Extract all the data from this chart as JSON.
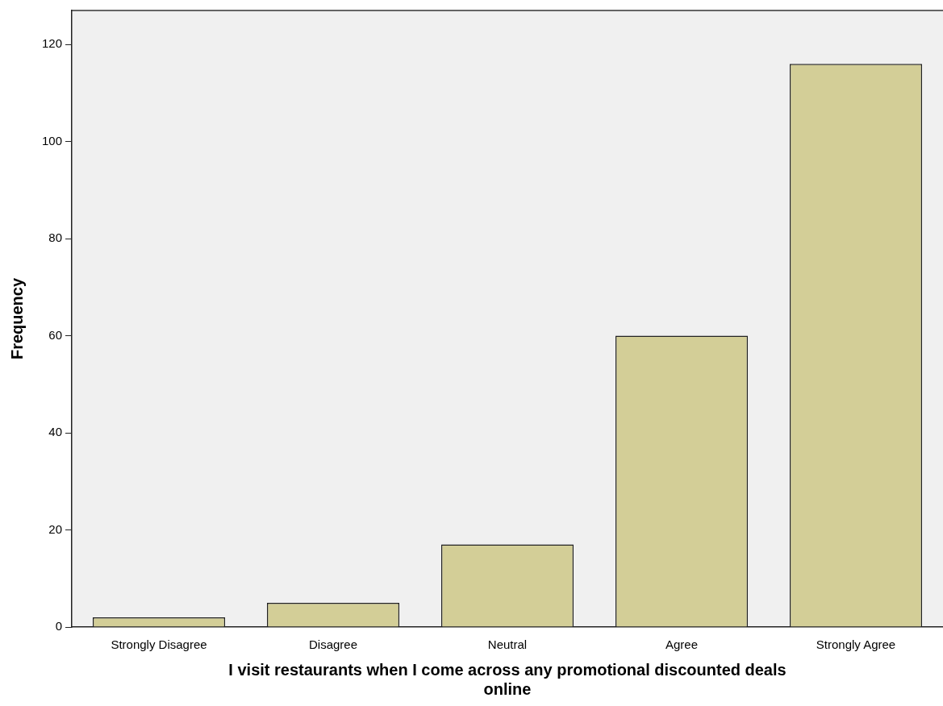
{
  "chart_data": {
    "type": "bar",
    "xlabel": "I visit restaurants when I come across any promotional discounted deals online",
    "ylabel": "Frequency",
    "categories": [
      "Strongly Disagree",
      "Disagree",
      "Neutral",
      "Agree",
      "Strongly Agree"
    ],
    "values": [
      2,
      5,
      17,
      60,
      116
    ],
    "color": "#d3ce97",
    "ylim": [
      0,
      127
    ],
    "yticks": [
      0,
      20,
      40,
      60,
      80,
      100,
      120
    ],
    "grid": false,
    "legend": false
  }
}
